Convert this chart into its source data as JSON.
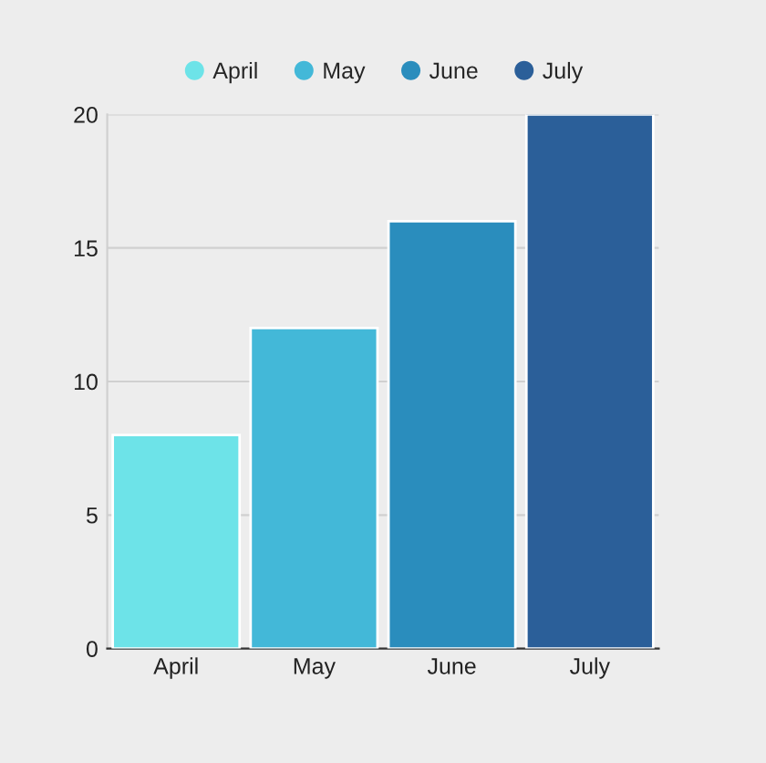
{
  "chart_data": {
    "type": "bar",
    "categories": [
      "April",
      "May",
      "June",
      "July"
    ],
    "series": [
      {
        "name": "April",
        "color": "#6de3e8",
        "values": [
          8,
          null,
          null,
          null
        ]
      },
      {
        "name": "May",
        "color": "#43b8d8",
        "values": [
          null,
          12,
          null,
          null
        ]
      },
      {
        "name": "June",
        "color": "#2a8dbd",
        "values": [
          null,
          null,
          16,
          null
        ]
      },
      {
        "name": "July",
        "color": "#2b5f99",
        "values": [
          null,
          null,
          null,
          20
        ]
      }
    ],
    "ylim": [
      0,
      20
    ],
    "yticks": [
      0,
      5,
      10,
      15,
      20
    ],
    "grid": "y",
    "legend": "top"
  }
}
